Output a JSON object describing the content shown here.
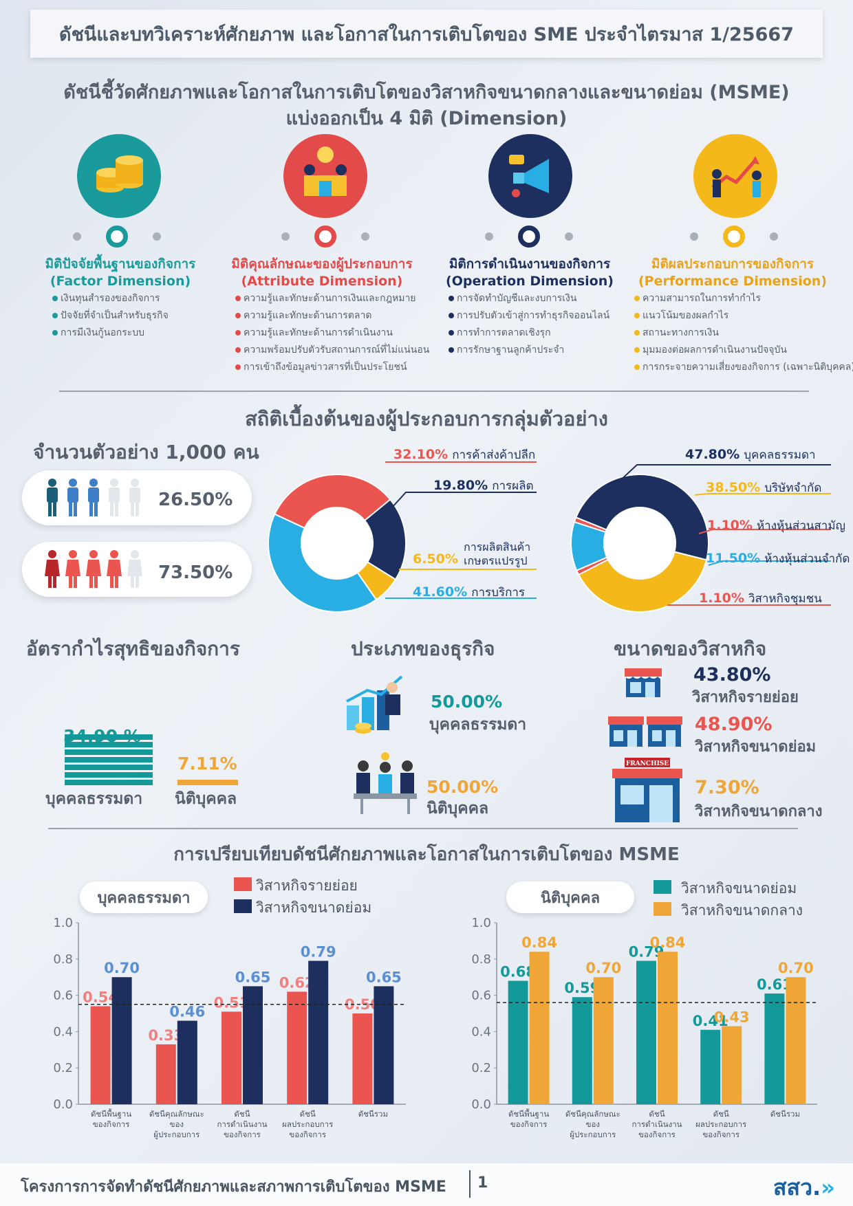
{
  "title": "ดัชนีและบทวิเคราะห์ศักยภาพ และโอกาสในการเติบโตของ SME ประจำไตรมาส 1/25667",
  "intro": {
    "line1": "ดัชนีชี้วัดศักยภาพและโอกาสในการเติบโตของวิสาหกิจขนาดกลางและขนาดย่อม (MSME)",
    "line2": "แบ่งออกเป็น 4 มิติ (Dimension)"
  },
  "dimensions": [
    {
      "title_th": "มิติปัจจัยพื้นฐานของกิจการ",
      "title_en": "(Factor Dimension)",
      "color": "#1a9a9a",
      "icon": "coins-icon",
      "items": [
        "เงินทุนสำรองของกิจการ",
        "ปัจจัยที่จำเป็นสำหรับธุรกิจ",
        "การมีเงินกู้นอกระบบ"
      ]
    },
    {
      "title_th": "มิติคุณลักษณะของผู้ประกอบการ",
      "title_en": "(Attribute Dimension)",
      "color": "#e34a4a",
      "icon": "people-idea-icon",
      "items": [
        "ความรู้และทักษะด้านการเงินและกฎหมาย",
        "ความรู้และทักษะด้านการตลาด",
        "ความรู้และทักษะด้านการดำเนินงาน",
        "ความพร้อมปรับตัวรับสถานการณ์ที่ไม่แน่นอน",
        "การเข้าถึงข้อมูลข่าวสารที่เป็นประโยชน์"
      ]
    },
    {
      "title_th": "มิติการดำเนินงานของกิจการ",
      "title_en": "(Operation Dimension)",
      "color": "#1c2f5e",
      "icon": "megaphone-icon",
      "items": [
        "การจัดทำบัญชีและงบการเงิน",
        "การปรับตัวเข้าสู่การทำธุรกิจออนไลน์",
        "การทำการตลาดเชิงรุก",
        "การรักษาฐานลูกค้าประจำ"
      ]
    },
    {
      "title_th": "มิติผลประกอบการของกิจการ",
      "title_en": "(Performance Dimension)",
      "color": "#e9a21c",
      "icon": "growth-chart-icon",
      "items": [
        "ความสามารถในการทำกำไร",
        "แนวโน้มของผลกำไร",
        "สถานะทางการเงิน",
        "มุมมองต่อผลการดำเนินงานปัจจุบัน",
        "การกระจายความเสี่ยงของกิจการ (เฉพาะนิติบุคคล)"
      ]
    }
  ],
  "stats": {
    "heading": "สถิติเบื้องต้นของผู้ประกอบการกลุ่มตัวอย่าง",
    "sample_label": "จำนวนตัวอย่าง 1,000  คน",
    "male_pct": "26.50%",
    "female_pct": "73.50%"
  },
  "chart_data": [
    {
      "type": "pie",
      "title": "",
      "labels": [
        "การค้าส่งค้าปลีก",
        "การผลิต",
        "การผลิตสินค้าเกษตรแปรรูป",
        "การบริการ"
      ],
      "values": [
        32.1,
        19.8,
        6.5,
        41.6
      ],
      "colors": [
        "#ea5550",
        "#1c2f5e",
        "#f5b81a",
        "#29aee3"
      ]
    },
    {
      "type": "pie",
      "title": "",
      "labels": [
        "บุคคลธรรมดา",
        "บริษัทจำกัด",
        "ห้างหุ้นส่วนสามัญ",
        "ห้างหุ้นส่วนจำกัด",
        "วิสาหกิจชุมชน"
      ],
      "values": [
        47.8,
        38.5,
        1.1,
        11.5,
        1.1
      ],
      "colors": [
        "#1c2f5e",
        "#f5b81a",
        "#ea5550",
        "#29aee3",
        "#ea5550"
      ]
    },
    {
      "type": "bar",
      "title": "บุคคลธรรมดา",
      "categories": [
        "ดัชนีพื้นฐานของกิจการ",
        "ดัชนีคุณลักษณะของผู้ประกอบการ",
        "ดัชนีการดำเนินงานของกิจการ",
        "ดัชนีผลประกอบการของกิจการ",
        "ดัชนีรวม"
      ],
      "series": [
        {
          "name": "วิสาหกิจรายย่อย",
          "values": [
            0.54,
            0.33,
            0.51,
            0.62,
            0.5
          ]
        },
        {
          "name": "วิสาหกิจขนาดย่อม",
          "values": [
            0.7,
            0.46,
            0.65,
            0.79,
            0.65
          ]
        }
      ],
      "ylim": [
        0,
        1.0
      ],
      "yticks": [
        "0.0",
        "0.2",
        "0.4",
        "0.6",
        "0.8",
        "1.0"
      ],
      "reference_line": 0.55
    },
    {
      "type": "bar",
      "title": "นิติบุคคล",
      "categories": [
        "ดัชนีพื้นฐานของกิจการ",
        "ดัชนีคุณลักษณะของผู้ประกอบการ",
        "ดัชนีการดำเนินงานของกิจการ",
        "ดัชนีผลประกอบการของกิจการ",
        "ดัชนีรวม"
      ],
      "series": [
        {
          "name": "วิสาหกิจขนาดย่อม",
          "values": [
            0.68,
            0.59,
            0.79,
            0.41,
            0.61
          ]
        },
        {
          "name": "วิสาหกิจขนาดกลาง",
          "values": [
            0.84,
            0.7,
            0.84,
            0.43,
            0.7
          ]
        }
      ],
      "ylim": [
        0,
        1.0
      ],
      "yticks": [
        "0.0",
        "0.2",
        "0.4",
        "0.6",
        "0.8",
        "1.0"
      ],
      "reference_line": 0.56
    }
  ],
  "donut1_labels": [
    {
      "pct": "32.10%",
      "name": "การค้าส่งค้าปลีก"
    },
    {
      "pct": "19.80%",
      "name": "การผลิต"
    },
    {
      "pct": "6.50%",
      "name1": "การผลิตสินค้า",
      "name2": "เกษตรแปรรูป"
    },
    {
      "pct": "41.60%",
      "name": "การบริการ"
    }
  ],
  "donut2_labels": [
    {
      "pct": "47.80%",
      "name": "บุคคลธรรมดา"
    },
    {
      "pct": "38.50%",
      "name": "บริษัทจำกัด"
    },
    {
      "pct": "1.10%",
      "name": "ห้างหุ้นส่วนสามัญ"
    },
    {
      "pct": "11.50%",
      "name": "ห้างหุ้นส่วนจำกัด"
    },
    {
      "pct": "1.10%",
      "name": "วิสาหกิจชุมชน"
    }
  ],
  "profit": {
    "heading": "อัตรากำไรสุทธิของกิจการ",
    "individual_pct": "34.90 %",
    "individual_label": "บุคคลธรรมดา",
    "juristic_pct": "7.11%",
    "juristic_label": "นิติบุคคล",
    "individual_value": 34.9,
    "juristic_value": 7.11
  },
  "biztype": {
    "heading": "ประเภทของธุรกิจ",
    "individual_pct": "50.00%",
    "individual_label": "บุคคลธรรมดา",
    "juristic_pct": "50.00%",
    "juristic_label": "นิติบุคคล"
  },
  "size": {
    "heading": "ขนาดของวิสาหกิจ",
    "micro_pct": "43.80%",
    "micro_label": "วิสาหกิจรายย่อย",
    "small_pct": "48.90%",
    "small_label": "วิสาหกิจขนาดย่อม",
    "medium_pct": "7.30%",
    "medium_label": "วิสาหกิจขนาดกลาง",
    "franchise_sign": "FRANCHISE"
  },
  "compare": {
    "heading": "การเปรียบเทียบดัชนีศักยภาพและโอกาสในการเติบโตของ MSME",
    "left_panel": "บุคคลธรรมดา",
    "right_panel": "นิติบุคคล",
    "left_legend": [
      "วิสาหกิจรายย่อย",
      "วิสาหกิจขนาดย่อม"
    ],
    "right_legend": [
      "วิสาหกิจขนาดย่อม",
      "วิสาหกิจขนาดกลาง"
    ],
    "left_colors": [
      "#ea5550",
      "#1c2f5e"
    ],
    "right_colors": [
      "#13999a",
      "#f0a637"
    ],
    "left_label_colors": [
      "#f08080",
      "#5b8fd4"
    ],
    "right_label_colors": [
      "#13999a",
      "#f0a637"
    ]
  },
  "footer": {
    "text": "โครงการการจัดทำดัชนีศักยภาพและสภาพการเติบโตของ MSME",
    "page": "1",
    "logo": "สสว."
  }
}
